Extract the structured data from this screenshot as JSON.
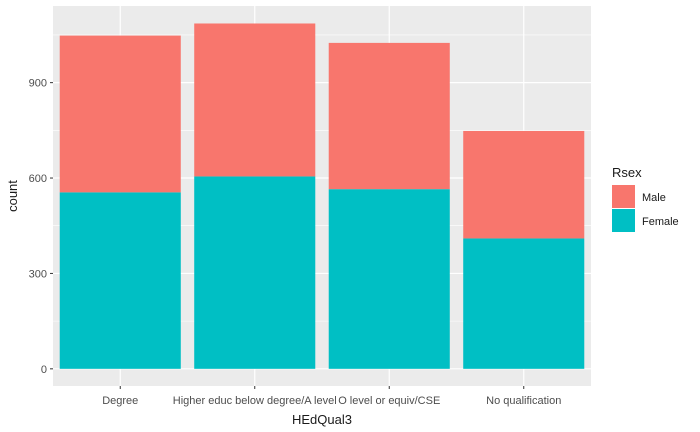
{
  "chart_data": {
    "type": "bar",
    "stacked": true,
    "categories": [
      "Degree",
      "Higher educ below degree/A level",
      "O level or equiv/CSE",
      "No qualification"
    ],
    "series": [
      {
        "name": "Male",
        "values": [
          493,
          481,
          460,
          338
        ],
        "color": "#F8766D"
      },
      {
        "name": "Female",
        "values": [
          555,
          605,
          565,
          410
        ],
        "color": "#00BFC4"
      }
    ],
    "xlabel": "HEdQual3",
    "ylabel": "count",
    "yticks": [
      0,
      300,
      600,
      900
    ],
    "ylim": [
      -54,
      1141
    ],
    "grid": true,
    "legend": {
      "title": "Rsex",
      "position": "right",
      "entries": [
        "Male",
        "Female"
      ]
    },
    "panel_background": "#EBEBEB",
    "grid_color": "#FFFFFF"
  }
}
